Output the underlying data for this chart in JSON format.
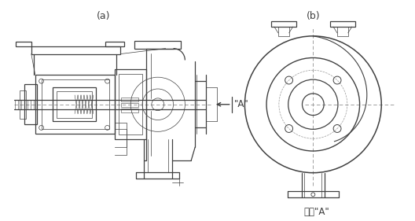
{
  "title_b": "矢視\"A\"",
  "label_a": "(a)",
  "label_b": "(b)",
  "arrow_label": "\"A\"",
  "bg_color": "#ffffff",
  "line_color": "#404040",
  "dash_color": "#999999",
  "fig_width": 5.28,
  "fig_height": 2.81,
  "dpi": 100
}
